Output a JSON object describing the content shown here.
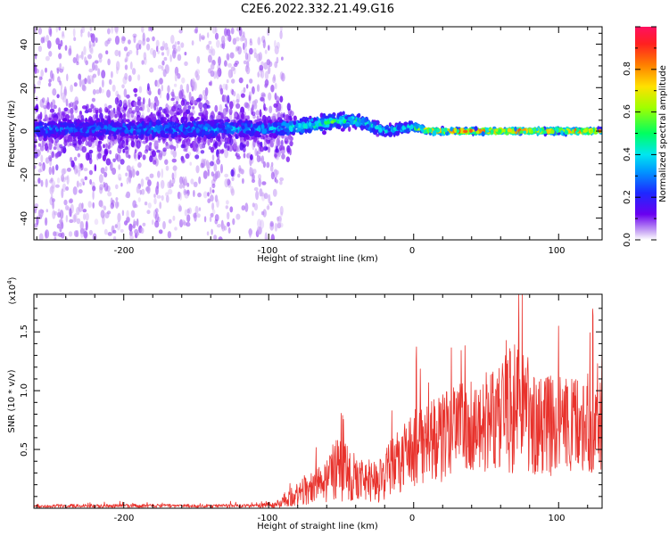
{
  "chart_data": [
    {
      "type": "heatmap",
      "title": "C2E6.2022.332.21.49.G16",
      "xlabel": "Height of straight line (km)",
      "ylabel": "Frequency (Hz)",
      "xlim": [
        -262,
        130
      ],
      "ylim": [
        -50,
        48
      ],
      "xticks": [
        "-200",
        "-100",
        "0",
        "100"
      ],
      "yticks": [
        "-40",
        "-20",
        "0",
        "20",
        "40"
      ],
      "colorbar": {
        "label": "Normalized spectral amplitude",
        "range": [
          0.0,
          1.0
        ],
        "ticks": [
          "0.0",
          "0.2",
          "0.4",
          "0.6",
          "0.8"
        ]
      },
      "colors": {
        "low": "#e8d8f8",
        "mid": "#5a00e0",
        "core": "#ff2040"
      },
      "ridge": [
        {
          "x": -260,
          "y": 1,
          "spread": 4,
          "amp": 0.38
        },
        {
          "x": -200,
          "y": 1,
          "spread": 4,
          "amp": 0.4
        },
        {
          "x": -150,
          "y": 1,
          "spread": 4,
          "amp": 0.42
        },
        {
          "x": -100,
          "y": 1,
          "spread": 3,
          "amp": 0.45
        },
        {
          "x": -80,
          "y": 2,
          "spread": 3,
          "amp": 0.55
        },
        {
          "x": -60,
          "y": 4,
          "spread": 3,
          "amp": 0.58
        },
        {
          "x": -40,
          "y": 5,
          "spread": 3,
          "amp": 0.55
        },
        {
          "x": -20,
          "y": 0,
          "spread": 2,
          "amp": 0.5
        },
        {
          "x": 0,
          "y": 2,
          "spread": 2,
          "amp": 0.55
        },
        {
          "x": 10,
          "y": 0,
          "spread": 1,
          "amp": 0.82
        },
        {
          "x": 50,
          "y": 0,
          "spread": 1,
          "amp": 0.86
        },
        {
          "x": 100,
          "y": 0,
          "spread": 1,
          "amp": 0.84
        },
        {
          "x": 130,
          "y": 0,
          "spread": 1,
          "amp": 0.8
        }
      ]
    },
    {
      "type": "line",
      "xlabel": "Height of straight line (km)",
      "ylabel": "SNR (10 * v/v)",
      "yscale_label": "(x10",
      "yscale_exp": "4",
      "yscale_close": ")",
      "xlim": [
        -262,
        130
      ],
      "ylim": [
        0,
        1.82
      ],
      "xticks": [
        "-200",
        "-100",
        "0",
        "100"
      ],
      "yticks": [
        "0.5",
        "1.0",
        "1.5"
      ],
      "color": "#e8322c",
      "envelope": [
        {
          "x": -262,
          "y": 0.02,
          "amp": 0.015
        },
        {
          "x": -110,
          "y": 0.02,
          "amp": 0.015
        },
        {
          "x": -95,
          "y": 0.03,
          "amp": 0.03
        },
        {
          "x": -80,
          "y": 0.12,
          "amp": 0.1
        },
        {
          "x": -60,
          "y": 0.25,
          "amp": 0.2
        },
        {
          "x": -50,
          "y": 0.38,
          "amp": 0.32
        },
        {
          "x": -40,
          "y": 0.25,
          "amp": 0.2
        },
        {
          "x": -25,
          "y": 0.22,
          "amp": 0.18
        },
        {
          "x": -15,
          "y": 0.35,
          "amp": 0.25
        },
        {
          "x": -5,
          "y": 0.45,
          "amp": 0.3
        },
        {
          "x": 10,
          "y": 0.55,
          "amp": 0.35
        },
        {
          "x": 30,
          "y": 0.65,
          "amp": 0.4
        },
        {
          "x": 50,
          "y": 0.75,
          "amp": 0.45
        },
        {
          "x": 70,
          "y": 0.85,
          "amp": 0.55
        },
        {
          "x": 90,
          "y": 0.72,
          "amp": 0.45
        },
        {
          "x": 110,
          "y": 0.7,
          "amp": 0.4
        },
        {
          "x": 130,
          "y": 0.75,
          "amp": 0.45
        }
      ]
    }
  ]
}
